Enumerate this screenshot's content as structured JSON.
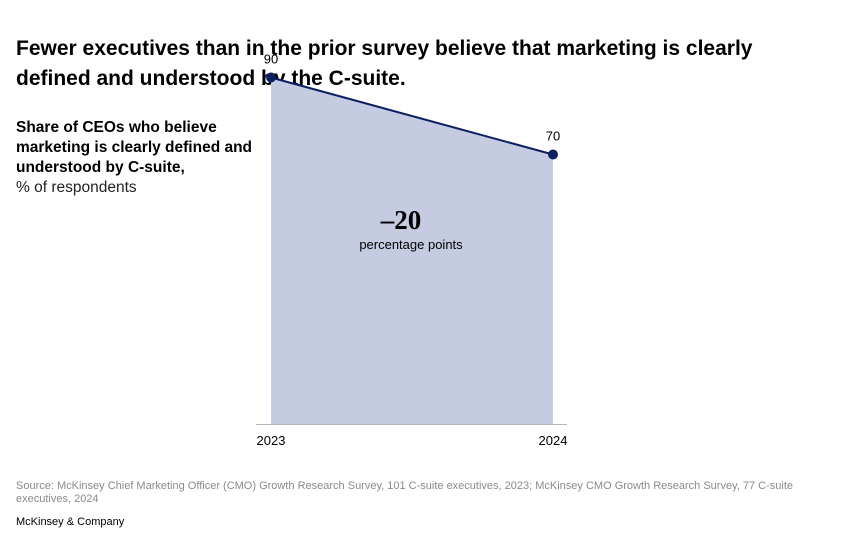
{
  "title": "Fewer executives than in the prior survey believe that marketing is clearly defined and understood by the C-suite.",
  "subtitle_bold": "Share of CEOs who believe marketing is clearly defined and understood by C-suite,",
  "subtitle_unit": "% of respondents",
  "source": "Source: McKinsey Chief Marketing Officer (CMO) Growth Research Survey, 101 C-suite executives, 2023; McKinsey CMO Growth Research Survey, 77 C-suite executives, 2024",
  "brand": "McKinsey & Company",
  "chart_data": {
    "type": "area",
    "x": [
      "2023",
      "2024"
    ],
    "values": [
      90,
      70
    ],
    "data_labels": [
      "90",
      "70"
    ],
    "ylim": [
      0,
      100
    ],
    "grid": false,
    "annotation": {
      "value": "–20",
      "label": "percentage points"
    },
    "colors": {
      "fill": "#c5cbe0",
      "line": "#0c1f63",
      "point": "#0c1f63",
      "axis": "#b5b5b5"
    }
  }
}
